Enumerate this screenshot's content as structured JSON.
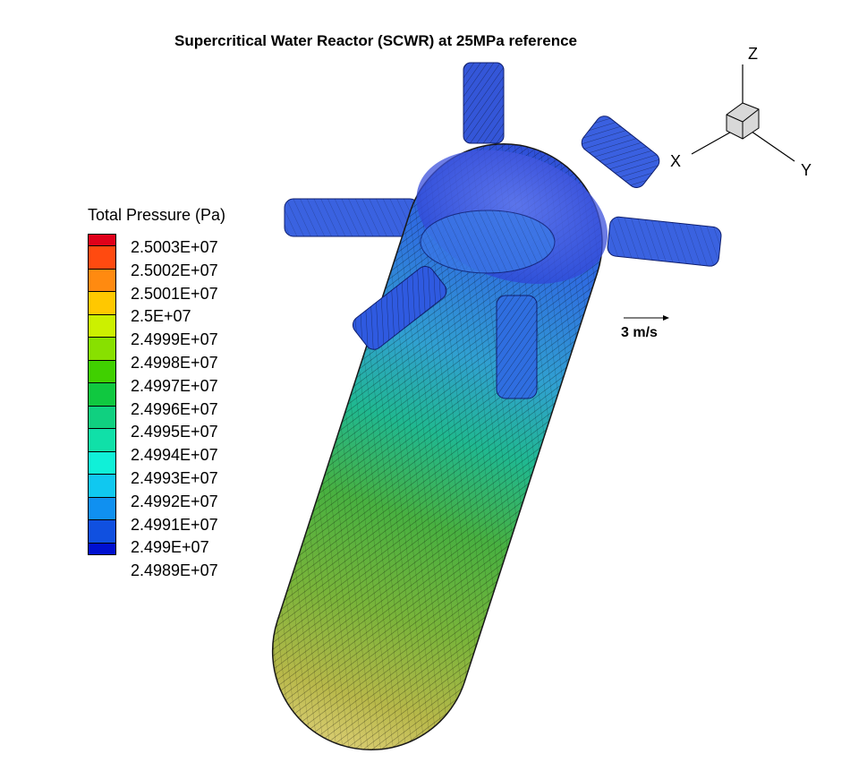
{
  "title": "Supercritical Water Reactor (SCWR) at 25MPa reference",
  "legend": {
    "title": "Total Pressure (Pa)",
    "levels": [
      {
        "label": "2.5003E+07",
        "color": "#e0001a"
      },
      {
        "label": "2.5002E+07",
        "color": "#ff4a10"
      },
      {
        "label": "2.5001E+07",
        "color": "#ff8a10"
      },
      {
        "label": "2.5E+07",
        "color": "#ffc800"
      },
      {
        "label": "2.4999E+07",
        "color": "#ccf000"
      },
      {
        "label": "2.4998E+07",
        "color": "#88e000"
      },
      {
        "label": "2.4997E+07",
        "color": "#40d000"
      },
      {
        "label": "2.4996E+07",
        "color": "#10c840"
      },
      {
        "label": "2.4995E+07",
        "color": "#10d080"
      },
      {
        "label": "2.4994E+07",
        "color": "#10e0a8"
      },
      {
        "label": "2.4993E+07",
        "color": "#10f0d8"
      },
      {
        "label": "2.4992E+07",
        "color": "#10c8f0"
      },
      {
        "label": "2.4991E+07",
        "color": "#1090f0"
      },
      {
        "label": "2.499E+07",
        "color": "#1050e0"
      },
      {
        "label": "2.4989E+07",
        "color": "#0010d0"
      }
    ]
  },
  "reference_vector": {
    "label": "3 m/s"
  },
  "axes": {
    "x": "X",
    "y": "Y",
    "z": "Z"
  }
}
